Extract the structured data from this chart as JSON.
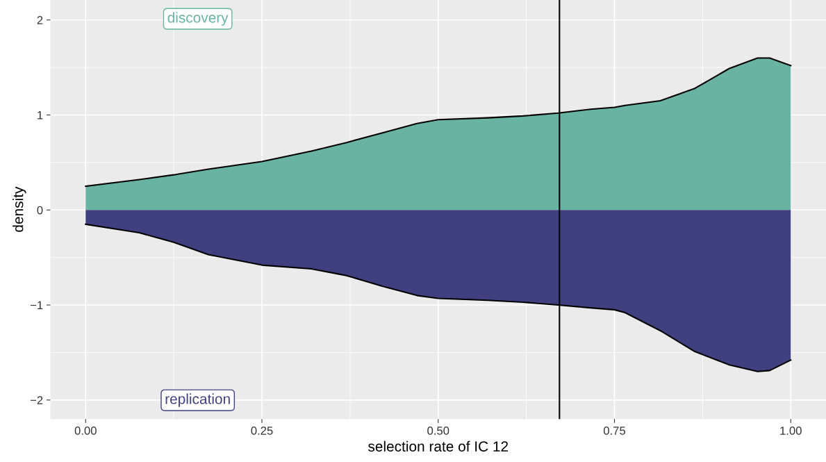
{
  "chart_data": {
    "type": "area",
    "xlabel": "selection rate of IC 12",
    "ylabel": "density",
    "xlim": [
      -0.05,
      1.05
    ],
    "ylim": [
      -2.2,
      2.21
    ],
    "xticks": [
      {
        "value": 0,
        "label": "0.00"
      },
      {
        "value": 0.25,
        "label": "0.25"
      },
      {
        "value": 0.5,
        "label": "0.50"
      },
      {
        "value": 0.75,
        "label": "0.75"
      },
      {
        "value": 1,
        "label": "1.00"
      }
    ],
    "yticks": [
      {
        "value": -2,
        "label": "−2"
      },
      {
        "value": -1,
        "label": "−1"
      },
      0,
      1,
      2
    ],
    "grid": true,
    "legend": false,
    "x": [
      0,
      0.076,
      0.125,
      0.174,
      0.25,
      0.32,
      0.37,
      0.42,
      0.47,
      0.5,
      0.57,
      0.62,
      0.67,
      0.716,
      0.75,
      0.765,
      0.815,
      0.864,
      0.913,
      0.953,
      0.97,
      1.0
    ],
    "series": [
      {
        "name": "discovery",
        "color": "#69b3a2",
        "values": [
          0.25,
          0.32,
          0.37,
          0.43,
          0.51,
          0.62,
          0.71,
          0.81,
          0.91,
          0.95,
          0.97,
          0.99,
          1.02,
          1.06,
          1.08,
          1.1,
          1.15,
          1.28,
          1.49,
          1.6,
          1.6,
          1.52
        ]
      },
      {
        "name": "replication",
        "color": "#404080",
        "values": [
          -0.15,
          -0.24,
          -0.34,
          -0.47,
          -0.58,
          -0.62,
          -0.69,
          -0.8,
          -0.9,
          -0.93,
          -0.95,
          -0.97,
          -1.0,
          -1.03,
          -1.05,
          -1.08,
          -1.27,
          -1.49,
          -1.63,
          -1.7,
          -1.69,
          -1.58
        ]
      }
    ],
    "ref_lines": [
      {
        "axis": "x",
        "value": 0.672,
        "color": "#000000"
      }
    ]
  }
}
